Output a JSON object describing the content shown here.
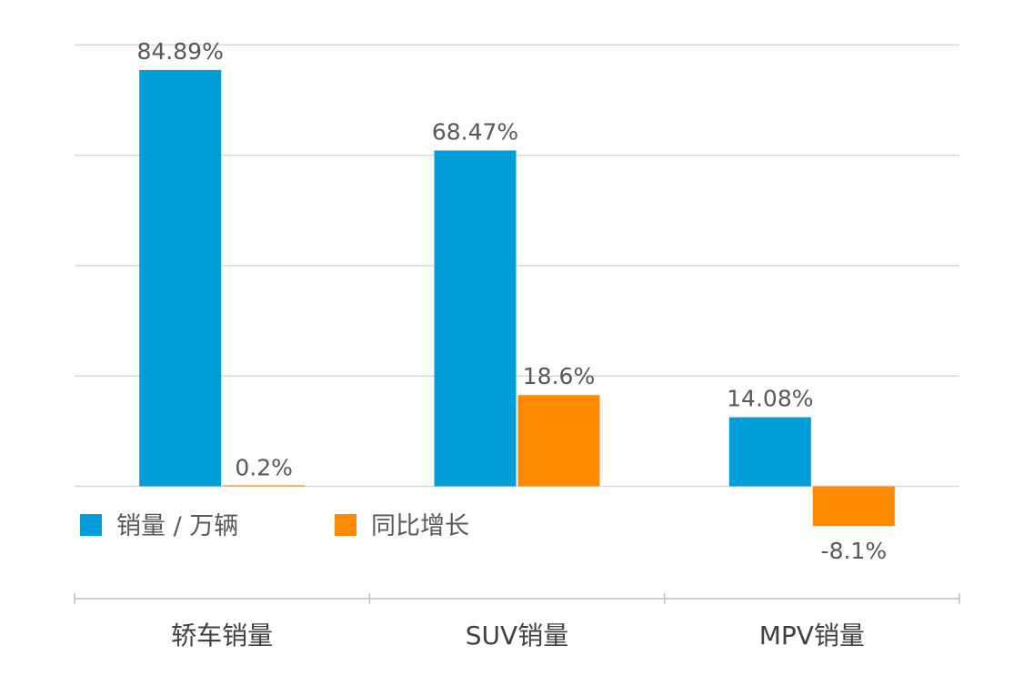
{
  "chart_data": {
    "type": "bar",
    "categories": [
      "轿车销量",
      "SUV销量",
      "MPV销量"
    ],
    "series": [
      {
        "name": "销量 / 万辆",
        "color": "#009fd9",
        "values": [
          84.89,
          68.47,
          14.08
        ],
        "labels": [
          "84.89%",
          "68.47%",
          "14.08%"
        ]
      },
      {
        "name": "同比增长",
        "color": "#ff8a00",
        "values": [
          0.2,
          18.6,
          -8.1
        ],
        "labels": [
          "0.2%",
          "18.6%",
          "-8.1%"
        ]
      }
    ],
    "ylim": [
      -30,
      120
    ],
    "grid": true,
    "y_tick_labels_shown": false,
    "legend_position": "inside, lower-left above the category axis"
  }
}
